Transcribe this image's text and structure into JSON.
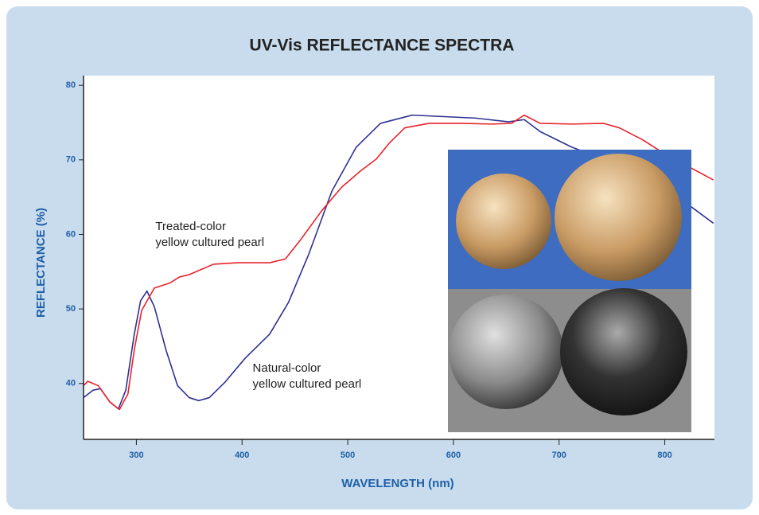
{
  "chart_data": {
    "type": "line",
    "title": "UV-Vis REFLECTANCE SPECTRA",
    "x_label": "WAVELENGTH (nm)",
    "y_label": "REFLECTANCE (%)",
    "xlim": [
      250,
      850
    ],
    "ylim": [
      32.5,
      81.3
    ],
    "xticks": [
      300,
      400,
      500,
      600,
      700,
      800
    ],
    "yticks": [
      40,
      50,
      60,
      70,
      80
    ],
    "annotations": [
      {
        "lines": [
          "Treated-color",
          "yellow cultured pearl"
        ],
        "x": 318,
        "y": 61
      },
      {
        "lines": [
          "Natural-color",
          "yellow cultured pearl"
        ],
        "x": 410,
        "y": 42
      }
    ],
    "series": [
      {
        "name": "Natural-color yellow cultured pearl",
        "color": "#2e3192",
        "x": [
          250,
          259,
          266,
          275,
          283,
          290,
          298,
          304,
          310,
          317,
          328,
          339,
          350,
          359,
          369,
          384,
          403,
          426,
          444,
          463,
          485,
          508,
          531,
          561,
          591,
          621,
          652,
          667,
          682,
          712,
          742,
          772,
          802,
          825,
          846
        ],
        "values": [
          38.1,
          39.1,
          39.3,
          37.5,
          36.6,
          39.1,
          46.6,
          51.1,
          52.4,
          50.3,
          44.5,
          39.7,
          38.1,
          37.7,
          38.1,
          40.2,
          43.4,
          46.6,
          50.9,
          57.3,
          65.8,
          71.7,
          74.9,
          76.0,
          75.8,
          75.6,
          75.1,
          75.4,
          73.8,
          71.7,
          70.1,
          67.9,
          65.8,
          63.7,
          61.5
        ]
      },
      {
        "name": "Treated-color yellow cultured pearl",
        "color": "#e8242b",
        "x": [
          250,
          254,
          264,
          275,
          284,
          292,
          298,
          305,
          317,
          332,
          341,
          350,
          373,
          396,
          426,
          441,
          456,
          475,
          494,
          512,
          527,
          539,
          554,
          577,
          606,
          637,
          655,
          667,
          682,
          712,
          742,
          757,
          779,
          802,
          825,
          846
        ],
        "values": [
          39.7,
          40.3,
          39.7,
          37.5,
          36.5,
          38.6,
          44.5,
          49.8,
          52.8,
          53.5,
          54.3,
          54.6,
          56.0,
          56.2,
          56.2,
          56.7,
          59.4,
          63.1,
          66.3,
          68.5,
          70.1,
          72.2,
          74.3,
          74.9,
          74.9,
          74.8,
          74.9,
          76.0,
          74.9,
          74.8,
          74.9,
          74.3,
          72.7,
          70.6,
          68.9,
          67.3
        ]
      }
    ]
  }
}
